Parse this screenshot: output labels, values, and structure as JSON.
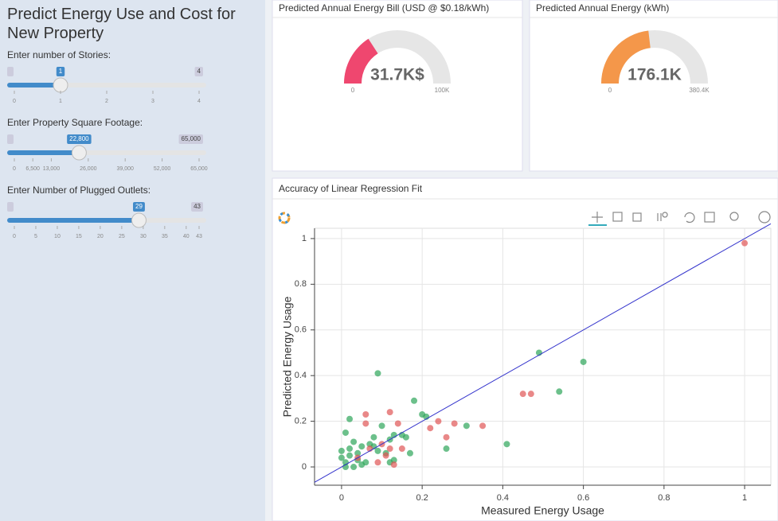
{
  "sidebar": {
    "title": "Predict Energy Use and Cost for New Property",
    "sliders": [
      {
        "label": "Enter number of Stories:",
        "min": 0,
        "max": 4,
        "value": 1,
        "ticks": [
          0,
          1,
          2,
          3,
          4
        ]
      },
      {
        "label": "Enter Property Square Footage:",
        "min": 0,
        "max": {
          "value": 65000,
          "label": "65,000"
        },
        "value": {
          "value": 22800,
          "label": "22,800"
        },
        "ticks": [
          0,
          {
            "value": 6500,
            "label": "6,500"
          },
          {
            "value": 13000,
            "label": "13,000"
          },
          {
            "value": 26000,
            "label": "26,000"
          },
          {
            "value": 39000,
            "label": "39,000"
          },
          {
            "value": 52000,
            "label": "52,000"
          },
          {
            "value": 65000,
            "label": "65,000"
          }
        ]
      },
      {
        "label": "Enter Number of Plugged Outlets:",
        "min": 0,
        "max": 43,
        "value": 29,
        "ticks": [
          0,
          5,
          10,
          15,
          20,
          25,
          30,
          35,
          40,
          43
        ]
      }
    ]
  },
  "gauges": [
    {
      "title": "Predicted Annual Energy Bill (USD @ $0.18/kWh)",
      "value": {
        "value": 31700,
        "label": "31.7K$"
      },
      "min": 0,
      "max": {
        "value": 100000,
        "label": "100K"
      },
      "color": "#ef476f"
    },
    {
      "title": "Predicted Annual Energy (kWh)",
      "value": {
        "value": 176100,
        "label": "176.1K"
      },
      "min": 0,
      "max": {
        "value": 380400,
        "label": "380.4K"
      },
      "color": "#f4974a"
    }
  ],
  "plot": {
    "title": "Accuracy of Linear Regression Fit",
    "type": "scatter",
    "xlabel": "Measured Energy Usage",
    "ylabel": "Predicted Energy Usage",
    "xlim": [
      -0.067,
      1.065
    ],
    "ylim": [
      -0.08,
      1.045
    ],
    "xticks": [
      0,
      0.2,
      0.4,
      0.6,
      0.8,
      1
    ],
    "yticks": [
      0,
      0.2,
      0.4,
      0.6,
      0.8,
      1
    ],
    "grid": true,
    "series": [
      {
        "color": "#2ea55a",
        "x": [
          0.09,
          0.49,
          0.6,
          0.54,
          0.41,
          0.18,
          0.2,
          0.21,
          0.31,
          0.26,
          0.15,
          0.16,
          0.13,
          0.1,
          0.12,
          0.08,
          0.07,
          0.02,
          0.03,
          0.01,
          0.02,
          0.04,
          0.05,
          0.0,
          0.01,
          0.03,
          0.02,
          0.06,
          0.09,
          0.12,
          0.13,
          0.11,
          0.17,
          0.04,
          0.0,
          0.01,
          0.05,
          0.08
        ],
        "y": [
          0.41,
          0.5,
          0.46,
          0.33,
          0.1,
          0.29,
          0.23,
          0.22,
          0.18,
          0.08,
          0.14,
          0.13,
          0.14,
          0.18,
          0.12,
          0.13,
          0.1,
          0.21,
          0.11,
          0.15,
          0.08,
          0.06,
          0.09,
          0.04,
          0.02,
          0.0,
          0.05,
          0.02,
          0.07,
          0.02,
          0.03,
          0.06,
          0.06,
          0.03,
          0.07,
          0.0,
          0.01,
          0.09
        ]
      },
      {
        "color": "#e05555",
        "x": [
          1.0,
          0.45,
          0.47,
          0.35,
          0.28,
          0.26,
          0.24,
          0.22,
          0.14,
          0.12,
          0.06,
          0.06,
          0.11,
          0.13,
          0.09,
          0.07,
          0.12,
          0.15,
          0.04,
          0.1
        ],
        "y": [
          0.98,
          0.32,
          0.32,
          0.18,
          0.19,
          0.13,
          0.2,
          0.17,
          0.19,
          0.24,
          0.23,
          0.19,
          0.05,
          0.01,
          0.02,
          0.08,
          0.08,
          0.08,
          0.04,
          0.1
        ]
      }
    ],
    "fit_line": {
      "color": "#3333cc",
      "x": [
        -0.067,
        1.065
      ],
      "y": [
        -0.067,
        1.065
      ]
    }
  }
}
